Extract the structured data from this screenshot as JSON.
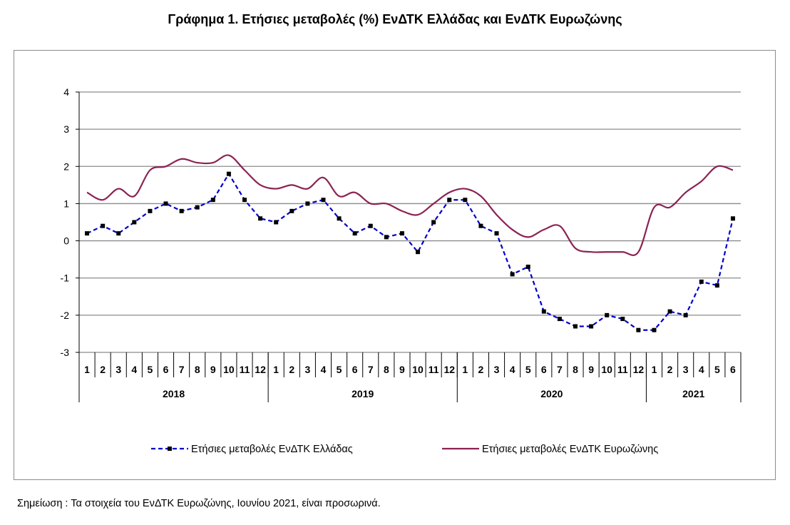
{
  "title": "Γράφημα 1. Ετήσιες μεταβολές (%) ΕνΔΤΚ Ελλάδας και ΕνΔΤΚ Ευρωζώνης",
  "note": "Σημείωση :  Τα στοιχεία του ΕνΔΤΚ Ευρωζώνης, Ιουνίου 2021, είναι προσωρινά.",
  "chart_data": {
    "type": "line",
    "title": "Γράφημα 1. Ετήσιες μεταβολές (%) ΕνΔΤΚ Ελλάδας και ΕνΔΤΚ Ευρωζώνης",
    "xlabel": "",
    "ylabel": "",
    "ylim": [
      -3,
      4
    ],
    "yticks": [
      "4",
      "3",
      "2",
      "1",
      "0",
      "-1",
      "-2",
      "-3"
    ],
    "grid": true,
    "legend_position": "bottom",
    "years": [
      {
        "label": "2018",
        "months": 12
      },
      {
        "label": "2019",
        "months": 12
      },
      {
        "label": "2020",
        "months": 12
      },
      {
        "label": "2021",
        "months": 6
      }
    ],
    "month_labels": [
      "1",
      "2",
      "3",
      "4",
      "5",
      "6",
      "7",
      "8",
      "9",
      "10",
      "11",
      "12",
      "1",
      "2",
      "3",
      "4",
      "5",
      "6",
      "7",
      "8",
      "9",
      "10",
      "11",
      "12",
      "1",
      "2",
      "3",
      "4",
      "5",
      "6",
      "7",
      "8",
      "9",
      "10",
      "11",
      "12",
      "1",
      "2",
      "3",
      "4",
      "5",
      "6"
    ],
    "series": [
      {
        "name": "Ετήσιες μεταβολές ΕνΔΤΚ Ελλάδας",
        "color": "#0000cc",
        "style": "dashed-markers",
        "values": [
          0.2,
          0.4,
          0.2,
          0.5,
          0.8,
          1.0,
          0.8,
          0.9,
          1.1,
          1.8,
          1.1,
          0.6,
          0.5,
          0.8,
          1.0,
          1.1,
          0.6,
          0.2,
          0.4,
          0.1,
          0.2,
          -0.3,
          0.5,
          1.1,
          1.1,
          0.4,
          0.2,
          -0.9,
          -0.7,
          -1.9,
          -2.1,
          -2.3,
          -2.3,
          -2.0,
          -2.1,
          -2.4,
          -2.4,
          -1.9,
          -2.0,
          -1.1,
          -1.2,
          0.6
        ]
      },
      {
        "name": "Ετήσιες μεταβολές ΕνΔΤΚ Ευρωζώνης",
        "color": "#8b2252",
        "style": "solid",
        "values": [
          1.3,
          1.1,
          1.4,
          1.2,
          1.9,
          2.0,
          2.2,
          2.1,
          2.1,
          2.3,
          1.9,
          1.5,
          1.4,
          1.5,
          1.4,
          1.7,
          1.2,
          1.3,
          1.0,
          1.0,
          0.8,
          0.7,
          1.0,
          1.3,
          1.4,
          1.2,
          0.7,
          0.3,
          0.1,
          0.3,
          0.4,
          -0.2,
          -0.3,
          -0.3,
          -0.3,
          -0.3,
          0.9,
          0.9,
          1.3,
          1.6,
          2.0,
          1.9
        ]
      }
    ]
  }
}
